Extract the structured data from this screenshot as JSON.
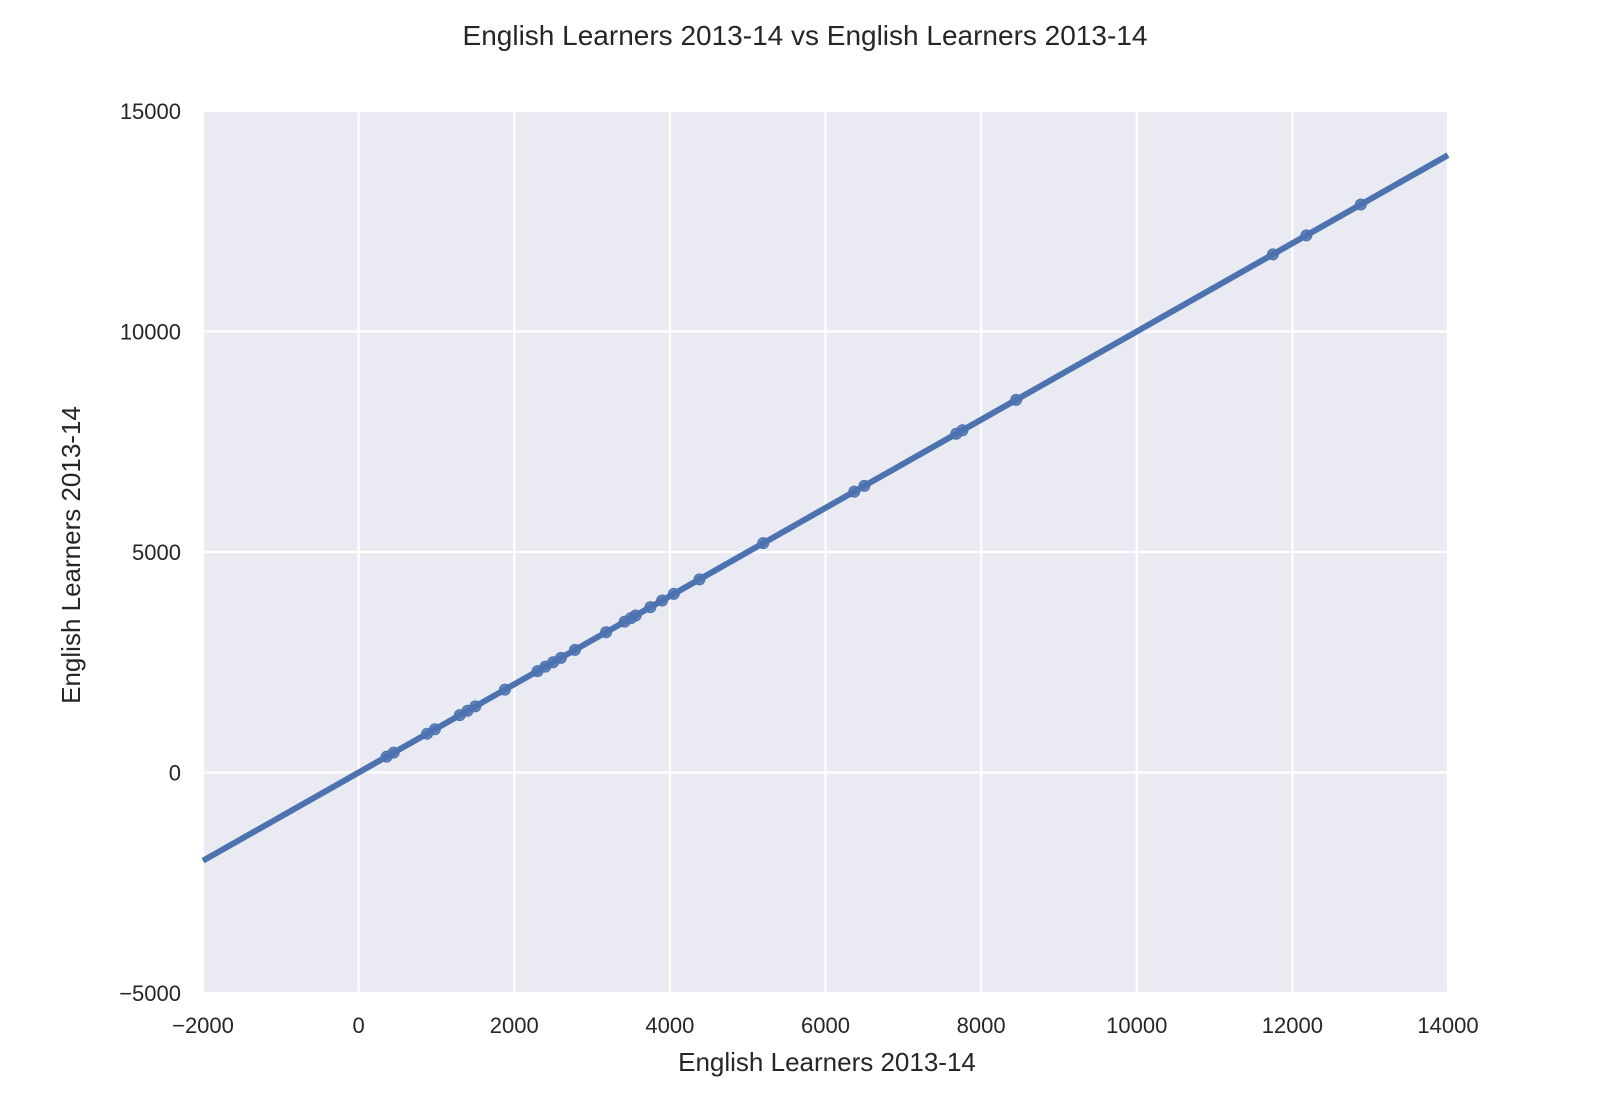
{
  "chart_data": {
    "type": "scatter",
    "title": "English Learners 2013-14 vs English Learners 2013-14",
    "xlabel": "English Learners 2013-14",
    "ylabel": "English Learners 2013-14",
    "xlim": [
      -2000,
      14000
    ],
    "ylim": [
      -5000,
      15000
    ],
    "x_ticks": [
      -2000,
      0,
      2000,
      4000,
      6000,
      8000,
      10000,
      12000,
      14000
    ],
    "y_ticks": [
      -5000,
      0,
      5000,
      10000,
      15000
    ],
    "x_tick_labels": [
      "−2000",
      "0",
      "2000",
      "4000",
      "6000",
      "8000",
      "10000",
      "12000",
      "14000"
    ],
    "y_tick_labels": [
      "−5000",
      "0",
      "5000",
      "10000",
      "15000"
    ],
    "grid": true,
    "legend": "none",
    "colors": {
      "background": "#eaeaf2",
      "grid": "#ffffff",
      "series": "#4c72b0",
      "text": "#262626"
    },
    "series": [
      {
        "points": [
          {
            "x": 360,
            "y": 360
          },
          {
            "x": 450,
            "y": 450
          },
          {
            "x": 880,
            "y": 880
          },
          {
            "x": 980,
            "y": 980
          },
          {
            "x": 1300,
            "y": 1300
          },
          {
            "x": 1400,
            "y": 1400
          },
          {
            "x": 1500,
            "y": 1500
          },
          {
            "x": 1880,
            "y": 1880
          },
          {
            "x": 2300,
            "y": 2300
          },
          {
            "x": 2400,
            "y": 2400
          },
          {
            "x": 2500,
            "y": 2500
          },
          {
            "x": 2600,
            "y": 2600
          },
          {
            "x": 2780,
            "y": 2780
          },
          {
            "x": 3180,
            "y": 3180
          },
          {
            "x": 3420,
            "y": 3420
          },
          {
            "x": 3500,
            "y": 3500
          },
          {
            "x": 3560,
            "y": 3560
          },
          {
            "x": 3750,
            "y": 3750
          },
          {
            "x": 3900,
            "y": 3900
          },
          {
            "x": 4050,
            "y": 4050
          },
          {
            "x": 4380,
            "y": 4380
          },
          {
            "x": 5200,
            "y": 5200
          },
          {
            "x": 6370,
            "y": 6370
          },
          {
            "x": 6500,
            "y": 6500
          },
          {
            "x": 7680,
            "y": 7680
          },
          {
            "x": 7760,
            "y": 7760
          },
          {
            "x": 8450,
            "y": 8450
          },
          {
            "x": 11750,
            "y": 11750
          },
          {
            "x": 12180,
            "y": 12180
          },
          {
            "x": 12880,
            "y": 12880
          }
        ]
      }
    ],
    "regression_line": {
      "slope": 1,
      "intercept": 0
    }
  }
}
